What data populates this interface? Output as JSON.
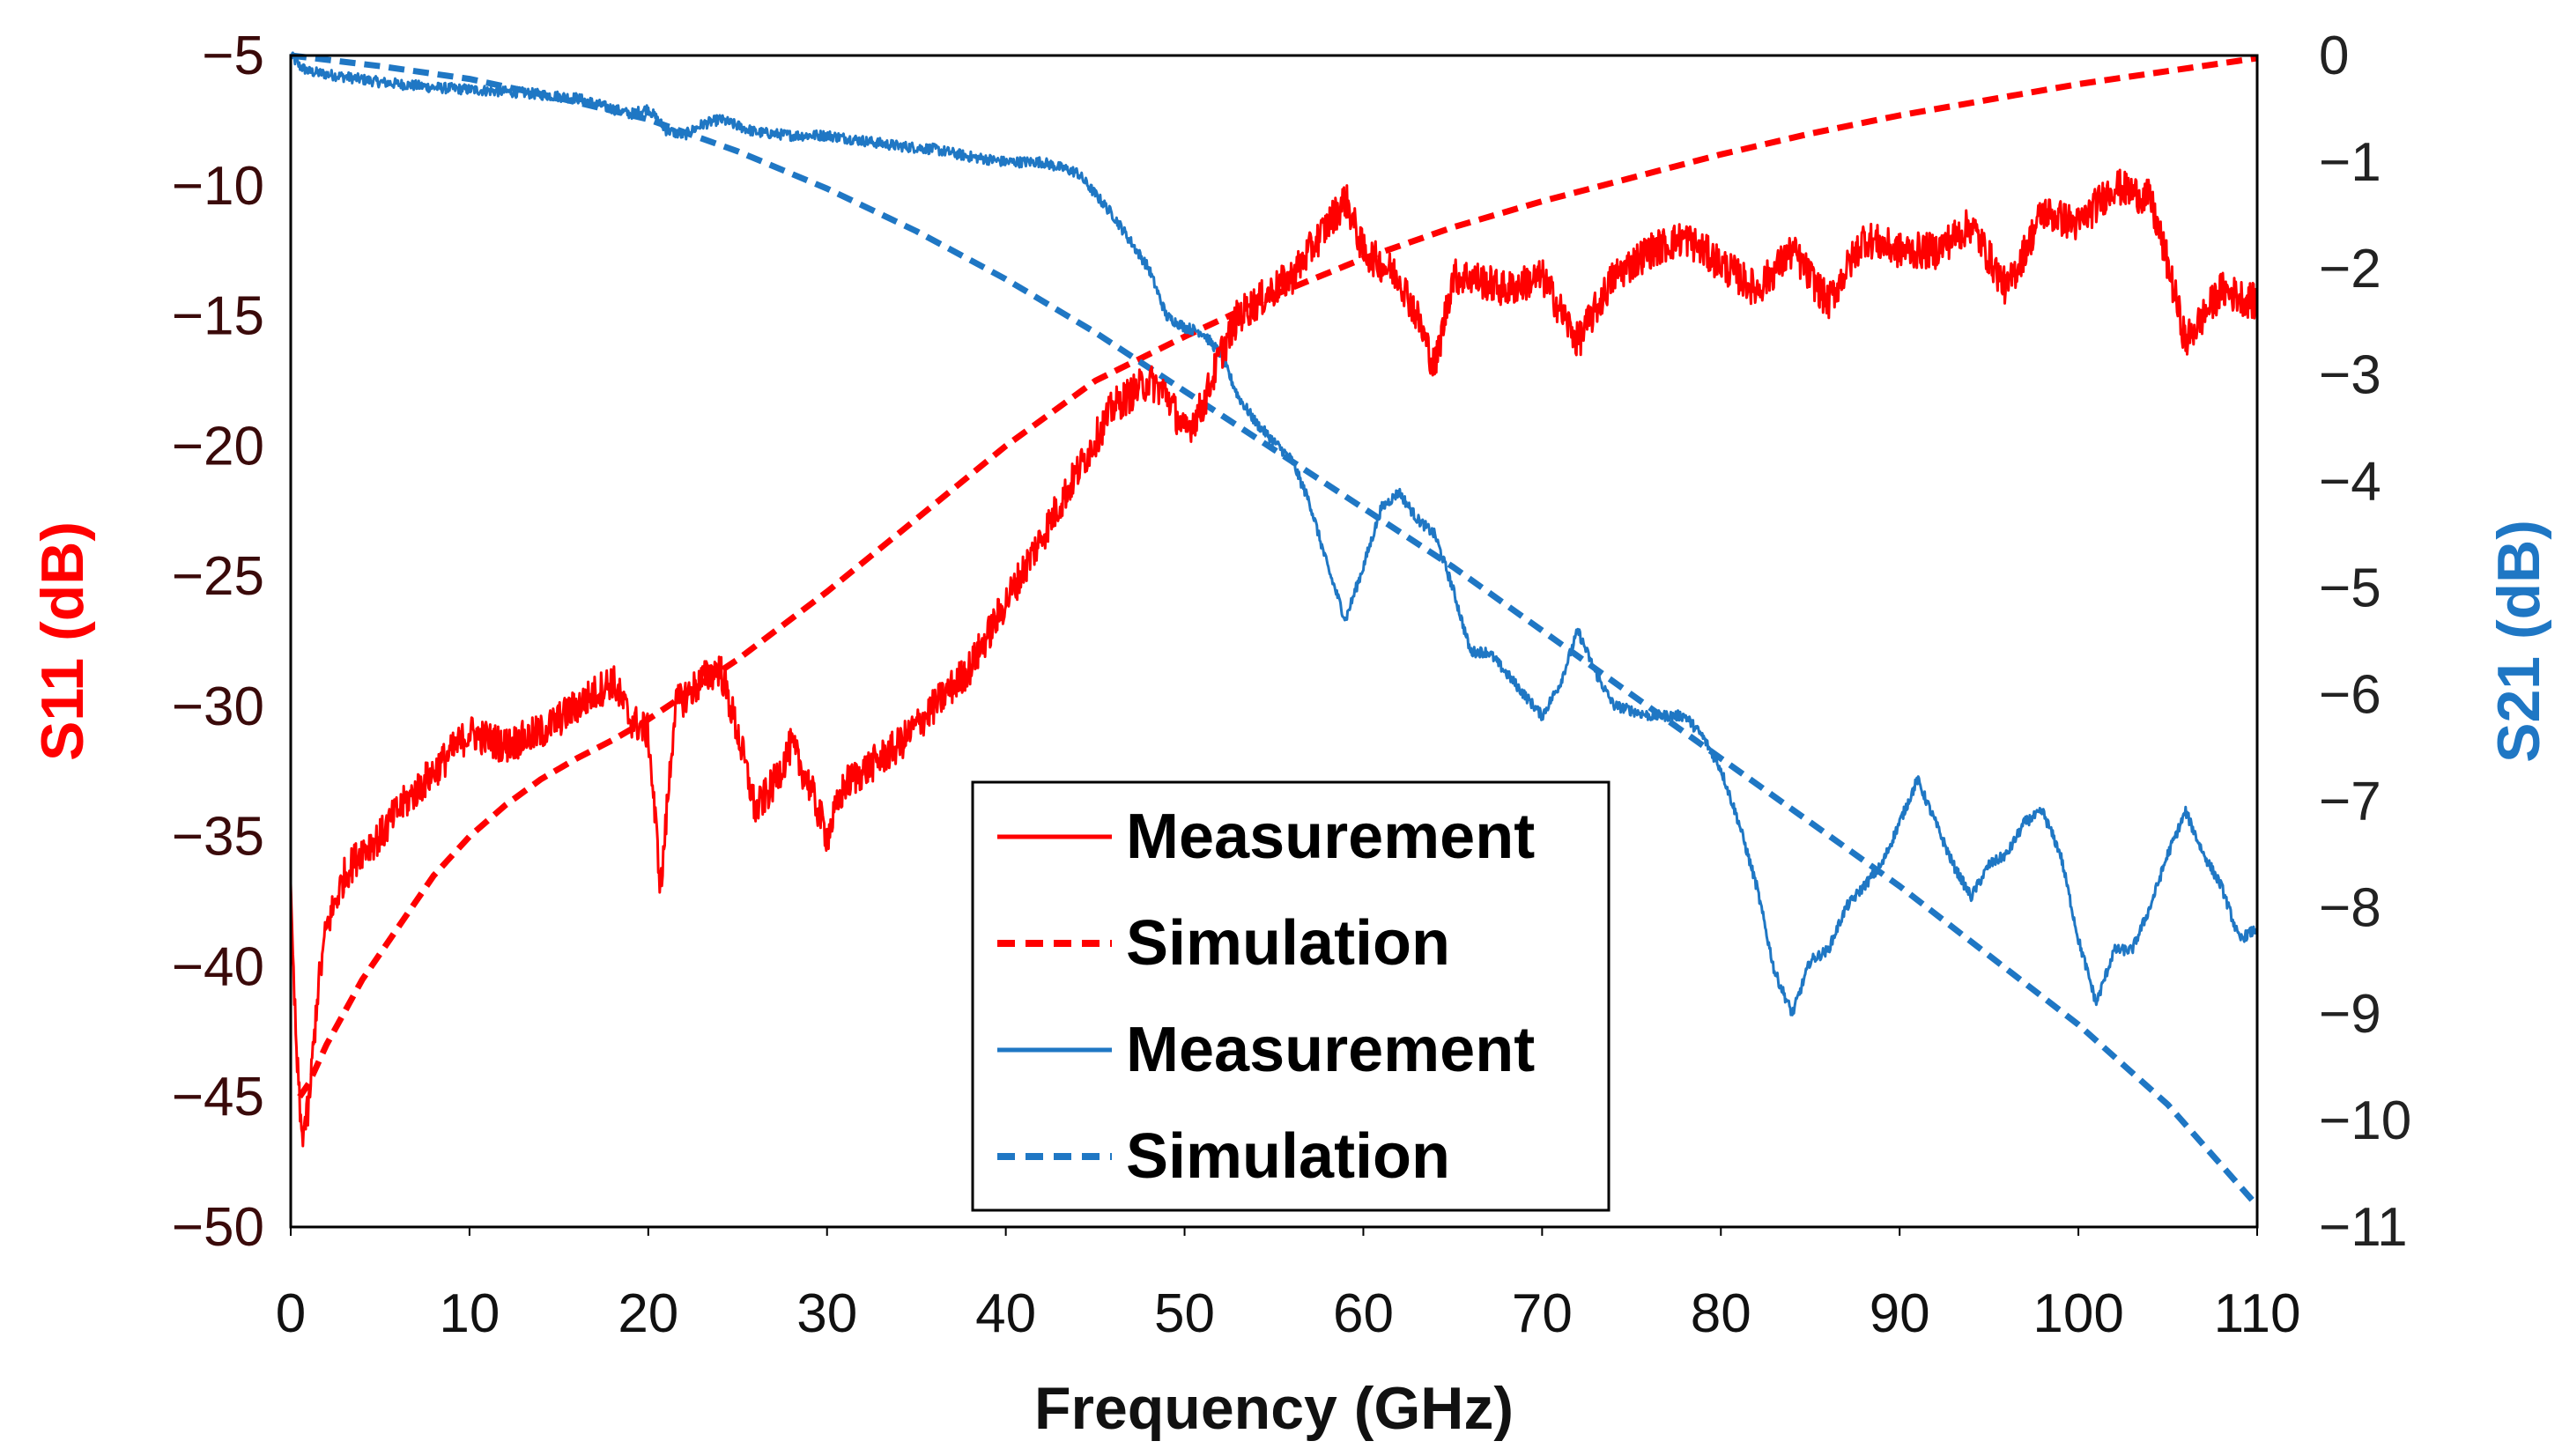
{
  "chart_data": {
    "type": "line",
    "title": "",
    "xlabel": "Frequency (GHz)",
    "ylabel_left": "S11 (dB)",
    "ylabel_right": "S21 (dB)",
    "xlim": [
      0,
      110
    ],
    "ylim_left": [
      -50,
      -5
    ],
    "ylim_right": [
      -11,
      0
    ],
    "x_ticks": [
      0,
      10,
      20,
      30,
      40,
      50,
      60,
      70,
      80,
      90,
      100,
      110
    ],
    "y_left_ticks": [
      "−5",
      "−10",
      "−15",
      "−20",
      "−25",
      "−30",
      "−35",
      "−40",
      "−45",
      "−50"
    ],
    "y_left_tick_values": [
      -5,
      -10,
      -15,
      -20,
      -25,
      -30,
      -35,
      -40,
      -45,
      -50
    ],
    "y_right_ticks": [
      "0",
      "−1",
      "−2",
      "−3",
      "−4",
      "−5",
      "−6",
      "−7",
      "−8",
      "−9",
      "−10",
      "−11"
    ],
    "y_right_tick_values": [
      0,
      -1,
      -2,
      -3,
      -4,
      -5,
      -6,
      -7,
      -8,
      -9,
      -10,
      -11
    ],
    "legend_position": "bottom-center",
    "colors": {
      "s11": "#ff0000",
      "s21": "#1f77c4"
    },
    "series": [
      {
        "name": "Measurement",
        "param": "S11",
        "axis": "left",
        "style": "solid",
        "noise": 0.7,
        "x": [
          0,
          0.3,
          0.6,
          1,
          1.5,
          2,
          3,
          4,
          5,
          6,
          8,
          10,
          12,
          14,
          16,
          18,
          19,
          20,
          20.7,
          21.5,
          23,
          24,
          25,
          26,
          27,
          28,
          29,
          30,
          31,
          32,
          34,
          36,
          38,
          40,
          42,
          44,
          46,
          48,
          49,
          50,
          51,
          52,
          53,
          54,
          56,
          58,
          59,
          60,
          62,
          63,
          64,
          65,
          66,
          68,
          70,
          72,
          74,
          76,
          78,
          80,
          82,
          84,
          86,
          88,
          90,
          92,
          94,
          96,
          98,
          100,
          102,
          104,
          105,
          106,
          108,
          110
        ],
        "values": [
          -37.5,
          -43,
          -46.5,
          -45.5,
          -41,
          -38.5,
          -36.5,
          -35.5,
          -35,
          -34,
          -32.5,
          -31,
          -31.5,
          -31,
          -30,
          -29,
          -30.5,
          -31,
          -37,
          -30,
          -29,
          -28.5,
          -31,
          -34,
          -33,
          -31.5,
          -33,
          -35,
          -33,
          -32.5,
          -31.5,
          -30,
          -28.5,
          -26,
          -23.5,
          -21,
          -18.5,
          -17.5,
          -18,
          -19.5,
          -18.5,
          -16.5,
          -15,
          -14.5,
          -13.5,
          -11.5,
          -10.5,
          -12.5,
          -13.5,
          -15,
          -17,
          -13.5,
          -13.5,
          -14,
          -13.5,
          -16,
          -13.5,
          -12.5,
          -12,
          -13,
          -14,
          -12.5,
          -14.5,
          -12,
          -12.5,
          -12.5,
          -11.5,
          -14,
          -11,
          -11.5,
          -10,
          -10.5,
          -13,
          -16,
          -14,
          -14.5
        ]
      },
      {
        "name": "Simulation",
        "param": "S11",
        "axis": "left",
        "style": "dashed",
        "noise": 0,
        "x": [
          0.5,
          1,
          2,
          4,
          6,
          8,
          10,
          12,
          14,
          16,
          18,
          20,
          25,
          30,
          35,
          40,
          45,
          50,
          55,
          60,
          65,
          70,
          75,
          80,
          85,
          90,
          95,
          100,
          105,
          110
        ],
        "values": [
          -45,
          -44.5,
          -43,
          -40.5,
          -38.5,
          -36.5,
          -35,
          -33.8,
          -32.8,
          -32,
          -31.3,
          -30.5,
          -28.2,
          -25.6,
          -22.8,
          -20,
          -17.5,
          -15.8,
          -14.2,
          -12.8,
          -11.6,
          -10.6,
          -9.7,
          -8.8,
          -8,
          -7.3,
          -6.7,
          -6.1,
          -5.6,
          -5.1
        ]
      },
      {
        "name": "Measurement",
        "param": "S21",
        "axis": "right",
        "style": "solid",
        "noise": 0.05,
        "x": [
          0,
          0.5,
          1,
          3,
          5,
          8,
          10,
          13,
          16,
          18,
          19,
          20,
          21,
          22,
          23,
          24,
          26,
          28,
          30,
          32,
          34,
          36,
          38,
          40,
          42,
          44,
          45,
          46,
          47,
          48,
          49,
          50,
          51,
          52,
          53,
          54,
          56,
          57,
          58,
          59,
          60,
          61,
          62,
          63,
          64,
          65,
          66,
          67,
          68,
          69,
          70,
          71,
          72,
          73,
          74,
          76,
          78,
          79,
          80,
          81,
          82,
          83,
          84,
          85,
          86,
          87,
          88,
          89,
          90,
          91,
          92,
          93,
          94,
          95,
          96,
          97,
          98,
          99,
          100,
          101,
          102,
          103,
          104,
          105,
          106,
          107,
          108,
          109,
          110
        ],
        "values": [
          0,
          -0.1,
          -0.15,
          -0.2,
          -0.25,
          -0.3,
          -0.32,
          -0.35,
          -0.4,
          -0.5,
          -0.55,
          -0.5,
          -0.7,
          -0.75,
          -0.65,
          -0.6,
          -0.72,
          -0.75,
          -0.75,
          -0.8,
          -0.85,
          -0.88,
          -0.95,
          -1,
          -1,
          -1.1,
          -1.3,
          -1.5,
          -1.75,
          -2,
          -2.45,
          -2.55,
          -2.6,
          -2.8,
          -3.2,
          -3.45,
          -3.8,
          -4.2,
          -4.8,
          -5.3,
          -4.8,
          -4.25,
          -4.1,
          -4.35,
          -4.5,
          -5,
          -5.6,
          -5.6,
          -5.8,
          -6,
          -6.2,
          -5.9,
          -5.4,
          -5.8,
          -6.1,
          -6.2,
          -6.2,
          -6.4,
          -6.7,
          -7.2,
          -7.8,
          -8.6,
          -9,
          -8.5,
          -8.4,
          -8.0,
          -7.8,
          -7.6,
          -7.2,
          -6.8,
          -7.2,
          -7.6,
          -7.9,
          -7.6,
          -7.5,
          -7.2,
          -7.1,
          -7.5,
          -8.3,
          -8.9,
          -8.4,
          -8.4,
          -8.0,
          -7.5,
          -7.1,
          -7.5,
          -7.8,
          -8.3,
          -8.2
        ]
      },
      {
        "name": "Simulation",
        "param": "S21",
        "axis": "right",
        "style": "dashed",
        "noise": 0,
        "x": [
          0,
          5,
          10,
          15,
          20,
          25,
          30,
          35,
          40,
          45,
          50,
          55,
          60,
          65,
          70,
          75,
          80,
          85,
          90,
          95,
          100,
          105,
          110
        ],
        "values": [
          0,
          -0.1,
          -0.22,
          -0.4,
          -0.6,
          -0.9,
          -1.25,
          -1.65,
          -2.1,
          -2.6,
          -3.15,
          -3.7,
          -4.25,
          -4.8,
          -5.4,
          -6,
          -6.6,
          -7.2,
          -7.8,
          -8.45,
          -9.1,
          -9.85,
          -10.8
        ]
      }
    ]
  }
}
